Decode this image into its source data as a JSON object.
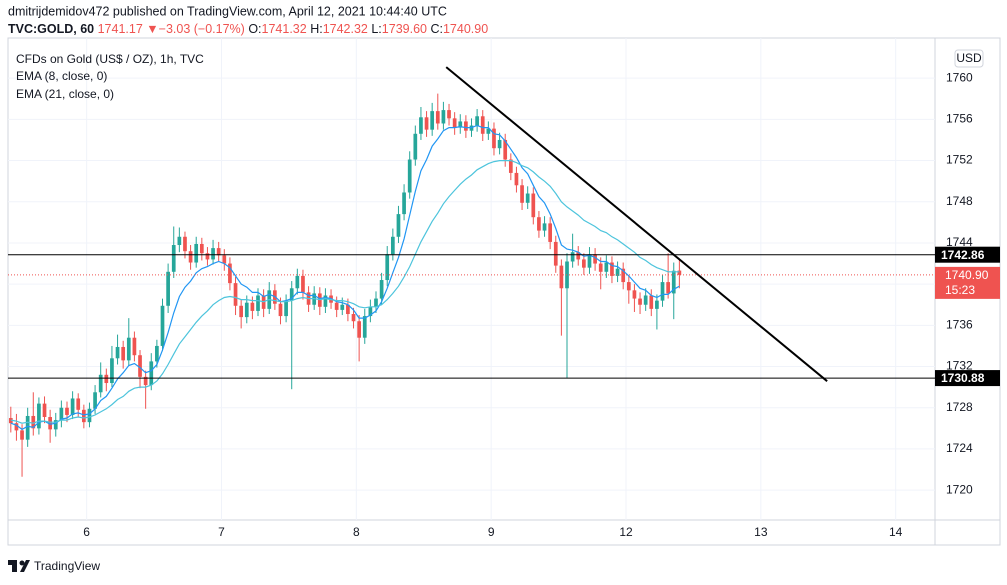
{
  "header": {
    "publisher": "dmitrijdemidov472 published on TradingView.com, April 12, 2021 10:44:40 UTC",
    "symbol": "TVC:GOLD, 60",
    "last": "1741.17",
    "arrow": "▼",
    "change": "−3.03 (−0.17%)",
    "o_label": "O:",
    "o": "1741.32",
    "h_label": "H:",
    "h": "1742.32",
    "l_label": "L:",
    "l": "1739.60",
    "c_label": "C:",
    "c": "1740.90"
  },
  "footer": {
    "brand": "TradingView"
  },
  "chart_data": {
    "type": "candlestick",
    "title": "CFDs on Gold (US$ / OZ), 1h, TVC",
    "currency": "USD",
    "up_color": "#26a69a",
    "down_color": "#ef5350",
    "grid": true,
    "xlim": [
      0,
      165
    ],
    "xticks": [
      {
        "value": 14,
        "label": "6"
      },
      {
        "value": 38,
        "label": "7"
      },
      {
        "value": 62,
        "label": "8"
      },
      {
        "value": 86,
        "label": "9"
      },
      {
        "value": 110,
        "label": "12"
      },
      {
        "value": 134,
        "label": "13"
      },
      {
        "value": 158,
        "label": "14"
      }
    ],
    "ylim": [
      1717.1,
      1763.9
    ],
    "yticks": [
      1720,
      1724,
      1728,
      1732,
      1736,
      1740,
      1744,
      1748,
      1752,
      1756,
      1760
    ],
    "ohlc": [
      [
        1727.0,
        1728.1,
        1725.6,
        1726.5
      ],
      [
        1726.5,
        1727.4,
        1724.8,
        1725.8
      ],
      [
        1725.8,
        1726.4,
        1721.3,
        1724.9
      ],
      [
        1724.9,
        1728.0,
        1724.2,
        1727.2
      ],
      [
        1727.2,
        1729.5,
        1725.3,
        1726.0
      ],
      [
        1726.0,
        1729.0,
        1725.4,
        1728.4
      ],
      [
        1728.4,
        1729.1,
        1726.5,
        1727.1
      ],
      [
        1727.1,
        1727.8,
        1724.6,
        1725.9
      ],
      [
        1725.9,
        1727.5,
        1725.2,
        1726.8
      ],
      [
        1726.8,
        1728.7,
        1726.1,
        1728.0
      ],
      [
        1728.0,
        1728.6,
        1726.6,
        1727.3
      ],
      [
        1727.3,
        1729.6,
        1726.9,
        1728.9
      ],
      [
        1728.9,
        1729.4,
        1727.1,
        1727.8
      ],
      [
        1727.8,
        1728.3,
        1726.0,
        1726.6
      ],
      [
        1726.6,
        1728.5,
        1726.1,
        1727.9
      ],
      [
        1727.9,
        1730.2,
        1727.4,
        1729.5
      ],
      [
        1729.5,
        1732.4,
        1729.0,
        1731.2
      ],
      [
        1731.2,
        1731.8,
        1729.6,
        1730.4
      ],
      [
        1730.4,
        1734.0,
        1730.0,
        1732.8
      ],
      [
        1732.8,
        1735.1,
        1732.2,
        1733.9
      ],
      [
        1733.9,
        1734.5,
        1731.8,
        1732.6
      ],
      [
        1732.6,
        1736.7,
        1732.1,
        1734.8
      ],
      [
        1734.8,
        1735.4,
        1732.5,
        1733.1
      ],
      [
        1733.1,
        1733.6,
        1729.9,
        1731.0
      ],
      [
        1731.0,
        1731.6,
        1727.9,
        1730.2
      ],
      [
        1730.2,
        1733.3,
        1729.7,
        1732.5
      ],
      [
        1732.5,
        1734.6,
        1731.9,
        1734.0
      ],
      [
        1734.0,
        1738.6,
        1733.5,
        1737.9
      ],
      [
        1737.9,
        1742.0,
        1737.2,
        1741.2
      ],
      [
        1741.2,
        1745.6,
        1740.6,
        1743.8
      ],
      [
        1743.8,
        1745.5,
        1743.1,
        1744.6
      ],
      [
        1744.6,
        1745.1,
        1742.5,
        1743.2
      ],
      [
        1743.2,
        1743.8,
        1741.4,
        1742.1
      ],
      [
        1742.1,
        1744.6,
        1741.6,
        1743.9
      ],
      [
        1743.9,
        1744.5,
        1742.3,
        1743.0
      ],
      [
        1743.0,
        1743.6,
        1741.8,
        1742.4
      ],
      [
        1742.4,
        1744.3,
        1741.9,
        1743.5
      ],
      [
        1743.5,
        1744.1,
        1742.2,
        1742.8
      ],
      [
        1742.8,
        1743.4,
        1741.3,
        1742.0
      ],
      [
        1742.0,
        1742.6,
        1739.4,
        1740.1
      ],
      [
        1740.1,
        1740.7,
        1737.0,
        1737.9
      ],
      [
        1737.9,
        1738.5,
        1735.7,
        1736.8
      ],
      [
        1736.8,
        1738.9,
        1736.2,
        1738.2
      ],
      [
        1738.2,
        1738.8,
        1736.6,
        1737.4
      ],
      [
        1737.4,
        1739.6,
        1736.9,
        1738.9
      ],
      [
        1738.9,
        1739.5,
        1736.8,
        1737.6
      ],
      [
        1737.6,
        1740.2,
        1737.1,
        1739.4
      ],
      [
        1739.4,
        1740.0,
        1737.5,
        1738.1
      ],
      [
        1738.1,
        1738.7,
        1736.1,
        1736.9
      ],
      [
        1736.9,
        1739.0,
        1736.3,
        1738.4
      ],
      [
        1738.4,
        1740.3,
        1729.8,
        1739.6
      ],
      [
        1739.6,
        1741.5,
        1739.0,
        1740.8
      ],
      [
        1740.8,
        1741.4,
        1738.5,
        1739.2
      ],
      [
        1739.2,
        1739.8,
        1737.3,
        1738.0
      ],
      [
        1738.0,
        1739.8,
        1737.5,
        1739.1
      ],
      [
        1739.1,
        1739.7,
        1737.0,
        1737.8
      ],
      [
        1737.8,
        1739.6,
        1737.2,
        1738.9
      ],
      [
        1738.9,
        1739.5,
        1737.6,
        1738.2
      ],
      [
        1738.2,
        1738.8,
        1736.8,
        1737.5
      ],
      [
        1737.5,
        1738.7,
        1737.0,
        1738.0
      ],
      [
        1738.0,
        1738.6,
        1736.4,
        1737.1
      ],
      [
        1737.1,
        1737.7,
        1735.7,
        1736.4
      ],
      [
        1736.4,
        1737.0,
        1732.5,
        1734.8
      ],
      [
        1734.8,
        1737.6,
        1734.2,
        1736.9
      ],
      [
        1736.9,
        1738.5,
        1736.3,
        1737.8
      ],
      [
        1737.8,
        1739.3,
        1737.2,
        1738.6
      ],
      [
        1738.6,
        1741.1,
        1738.0,
        1740.4
      ],
      [
        1740.4,
        1743.7,
        1739.8,
        1742.9
      ],
      [
        1742.9,
        1745.4,
        1742.3,
        1744.6
      ],
      [
        1744.6,
        1747.6,
        1744.0,
        1746.8
      ],
      [
        1746.8,
        1749.7,
        1746.2,
        1748.9
      ],
      [
        1748.9,
        1752.9,
        1748.3,
        1752.1
      ],
      [
        1752.1,
        1755.4,
        1751.5,
        1754.6
      ],
      [
        1754.6,
        1757.2,
        1754.0,
        1756.2
      ],
      [
        1756.2,
        1756.8,
        1754.3,
        1755.0
      ],
      [
        1755.0,
        1757.6,
        1754.4,
        1756.8
      ],
      [
        1756.8,
        1758.5,
        1755.0,
        1755.6
      ],
      [
        1755.6,
        1757.7,
        1755.0,
        1756.9
      ],
      [
        1756.9,
        1757.5,
        1755.4,
        1756.1
      ],
      [
        1756.1,
        1756.7,
        1754.5,
        1755.2
      ],
      [
        1755.2,
        1756.5,
        1754.6,
        1755.8
      ],
      [
        1755.8,
        1756.4,
        1754.2,
        1754.9
      ],
      [
        1754.9,
        1756.1,
        1754.3,
        1755.4
      ],
      [
        1755.4,
        1757.0,
        1754.8,
        1756.3
      ],
      [
        1756.3,
        1756.9,
        1753.9,
        1754.6
      ],
      [
        1754.6,
        1755.8,
        1754.0,
        1755.1
      ],
      [
        1755.1,
        1755.7,
        1752.5,
        1753.2
      ],
      [
        1753.2,
        1754.7,
        1752.6,
        1754.0
      ],
      [
        1754.0,
        1754.6,
        1751.4,
        1752.1
      ],
      [
        1752.1,
        1752.7,
        1750.1,
        1750.8
      ],
      [
        1750.8,
        1751.4,
        1748.9,
        1749.6
      ],
      [
        1749.6,
        1750.2,
        1747.2,
        1747.9
      ],
      [
        1747.9,
        1749.5,
        1747.3,
        1748.8
      ],
      [
        1748.8,
        1749.4,
        1745.8,
        1746.5
      ],
      [
        1746.5,
        1747.1,
        1744.5,
        1745.2
      ],
      [
        1745.2,
        1746.6,
        1744.6,
        1745.9
      ],
      [
        1745.9,
        1746.5,
        1743.4,
        1744.1
      ],
      [
        1744.1,
        1744.7,
        1741.1,
        1741.8
      ],
      [
        1741.8,
        1742.4,
        1735.0,
        1739.6
      ],
      [
        1739.6,
        1743.0,
        1730.9,
        1742.2
      ],
      [
        1742.2,
        1744.9,
        1741.6,
        1743.1
      ],
      [
        1743.1,
        1743.7,
        1741.8,
        1742.4
      ],
      [
        1742.4,
        1743.0,
        1740.9,
        1741.6
      ],
      [
        1741.6,
        1743.6,
        1741.0,
        1742.9
      ],
      [
        1742.9,
        1743.5,
        1741.3,
        1742.0
      ],
      [
        1742.0,
        1742.6,
        1739.5,
        1741.2
      ],
      [
        1741.2,
        1742.8,
        1740.6,
        1742.1
      ],
      [
        1742.1,
        1742.7,
        1740.1,
        1740.8
      ],
      [
        1740.8,
        1742.2,
        1740.2,
        1741.5
      ],
      [
        1741.5,
        1742.1,
        1739.5,
        1740.2
      ],
      [
        1740.2,
        1740.8,
        1738.1,
        1739.4
      ],
      [
        1739.4,
        1740.0,
        1737.3,
        1738.6
      ],
      [
        1738.6,
        1739.2,
        1737.1,
        1738.0
      ],
      [
        1738.0,
        1739.6,
        1737.4,
        1738.9
      ],
      [
        1738.9,
        1739.5,
        1736.9,
        1737.6
      ],
      [
        1737.6,
        1739.0,
        1735.6,
        1738.4
      ],
      [
        1738.4,
        1740.9,
        1737.8,
        1740.2
      ],
      [
        1740.2,
        1743.0,
        1738.6,
        1739.1
      ],
      [
        1739.1,
        1742.1,
        1736.6,
        1741.3
      ],
      [
        1741.32,
        1742.32,
        1739.6,
        1740.9
      ]
    ],
    "series": [
      {
        "name": "EMA (8, close, 0)",
        "color": "#2196f3",
        "values": [
          1726.5,
          1726.3,
          1725.9,
          1726.2,
          1726.1,
          1726.6,
          1726.7,
          1726.4,
          1726.5,
          1726.9,
          1727.0,
          1727.4,
          1727.5,
          1727.3,
          1727.4,
          1727.9,
          1728.7,
          1729.1,
          1729.9,
          1730.8,
          1731.4,
          1732.1,
          1732.3,
          1731.9,
          1731.4,
          1731.6,
          1732.2,
          1733.6,
          1735.3,
          1737.2,
          1738.8,
          1739.7,
          1740.3,
          1741.1,
          1741.5,
          1741.7,
          1742.0,
          1742.2,
          1742.0,
          1741.6,
          1740.8,
          1740.0,
          1739.7,
          1739.2,
          1739.2,
          1738.8,
          1739.0,
          1738.8,
          1738.3,
          1738.4,
          1738.6,
          1739.2,
          1739.2,
          1738.9,
          1738.9,
          1738.6,
          1738.7,
          1738.6,
          1738.3,
          1738.2,
          1738.0,
          1737.5,
          1736.7,
          1736.7,
          1737.0,
          1737.4,
          1738.3,
          1739.6,
          1741.1,
          1742.6,
          1744.4,
          1746.7,
          1749.0,
          1751.0,
          1752.1,
          1753.4,
          1754.1,
          1754.9,
          1755.2,
          1755.2,
          1755.3,
          1755.2,
          1755.2,
          1755.4,
          1755.2,
          1755.2,
          1754.6,
          1754.5,
          1753.9,
          1753.1,
          1752.3,
          1751.3,
          1750.7,
          1749.6,
          1748.5,
          1747.9,
          1746.8,
          1745.4,
          1743.8,
          1743.4,
          1743.3,
          1743.1,
          1742.7,
          1742.8,
          1742.6,
          1742.2,
          1742.2,
          1741.8,
          1741.7,
          1741.3,
          1740.8,
          1740.2,
          1739.6,
          1739.4,
          1738.9,
          1738.7,
          1739.0,
          1739.0,
          1739.5,
          1739.8
        ]
      },
      {
        "name": "EMA (21, close, 0)",
        "color": "#4dc4dc",
        "values": [
          1726.8,
          1726.7,
          1726.5,
          1726.6,
          1726.5,
          1726.7,
          1726.7,
          1726.6,
          1726.6,
          1726.8,
          1726.8,
          1727.0,
          1727.1,
          1727.0,
          1727.1,
          1727.3,
          1727.6,
          1727.9,
          1728.3,
          1728.8,
          1729.1,
          1729.6,
          1729.9,
          1730.0,
          1730.0,
          1730.2,
          1730.6,
          1731.3,
          1732.2,
          1733.2,
          1734.2,
          1734.9,
          1735.6,
          1736.3,
          1736.9,
          1737.4,
          1738.0,
          1738.4,
          1738.7,
          1738.8,
          1738.7,
          1738.5,
          1738.5,
          1738.4,
          1738.4,
          1738.3,
          1738.5,
          1738.4,
          1738.3,
          1738.3,
          1738.4,
          1738.6,
          1738.7,
          1738.6,
          1738.6,
          1738.5,
          1738.6,
          1738.5,
          1738.4,
          1738.4,
          1738.3,
          1738.1,
          1737.8,
          1737.7,
          1737.8,
          1737.8,
          1738.0,
          1738.5,
          1739.1,
          1739.8,
          1740.7,
          1741.7,
          1742.9,
          1744.1,
          1745.1,
          1746.1,
          1746.9,
          1747.8,
          1748.5,
          1749.1,
          1749.7,
          1750.2,
          1750.6,
          1751.1,
          1751.4,
          1751.7,
          1751.9,
          1752.0,
          1752.0,
          1752.0,
          1751.8,
          1751.5,
          1751.3,
          1750.9,
          1750.4,
          1750.0,
          1749.5,
          1748.8,
          1748.0,
          1747.5,
          1747.1,
          1746.7,
          1746.2,
          1745.9,
          1745.6,
          1745.2,
          1745.0,
          1744.6,
          1744.3,
          1743.9,
          1743.5,
          1743.1,
          1742.6,
          1742.3,
          1741.9,
          1741.6,
          1741.4,
          1741.2,
          1741.2,
          1741.2
        ]
      }
    ],
    "levels": [
      1742.86,
      1730.88
    ],
    "current_price": {
      "value": 1740.9,
      "label": "1740.90",
      "countdown": "15:23"
    },
    "trendline": {
      "x": [
        78,
        145.8
      ],
      "y": [
        1761.07,
        1730.58
      ]
    }
  }
}
